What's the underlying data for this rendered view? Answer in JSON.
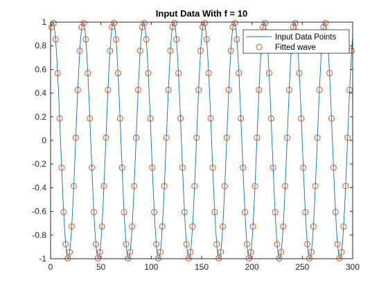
{
  "chart_data": {
    "type": "line",
    "title": "Input Data With f = 10",
    "xlabel": "",
    "ylabel": "",
    "xlim": [
      0,
      300
    ],
    "ylim": [
      -1,
      1
    ],
    "xticks": [
      "0",
      "50",
      "100",
      "150",
      "200",
      "250",
      "300"
    ],
    "yticks": [
      "-1",
      "-0.8",
      "-0.6",
      "-0.4",
      "-0.2",
      "0",
      "0.2",
      "0.4",
      "0.6",
      "0.8",
      "1"
    ],
    "grid": false,
    "legend_position": "top-right",
    "sample_count": 300,
    "signal": "sin(2*pi*10*n/300 + 1.07)",
    "series": [
      {
        "name": "Input Data Points",
        "style": "line",
        "color": "#0072BD",
        "note": "y = sin(2π·10·x/300 + 1.07), x = 1..300"
      },
      {
        "name": "Fitted wave",
        "style": "circle-markers",
        "color": "#D95319",
        "note": "same samples, drawn as open circles"
      }
    ]
  }
}
